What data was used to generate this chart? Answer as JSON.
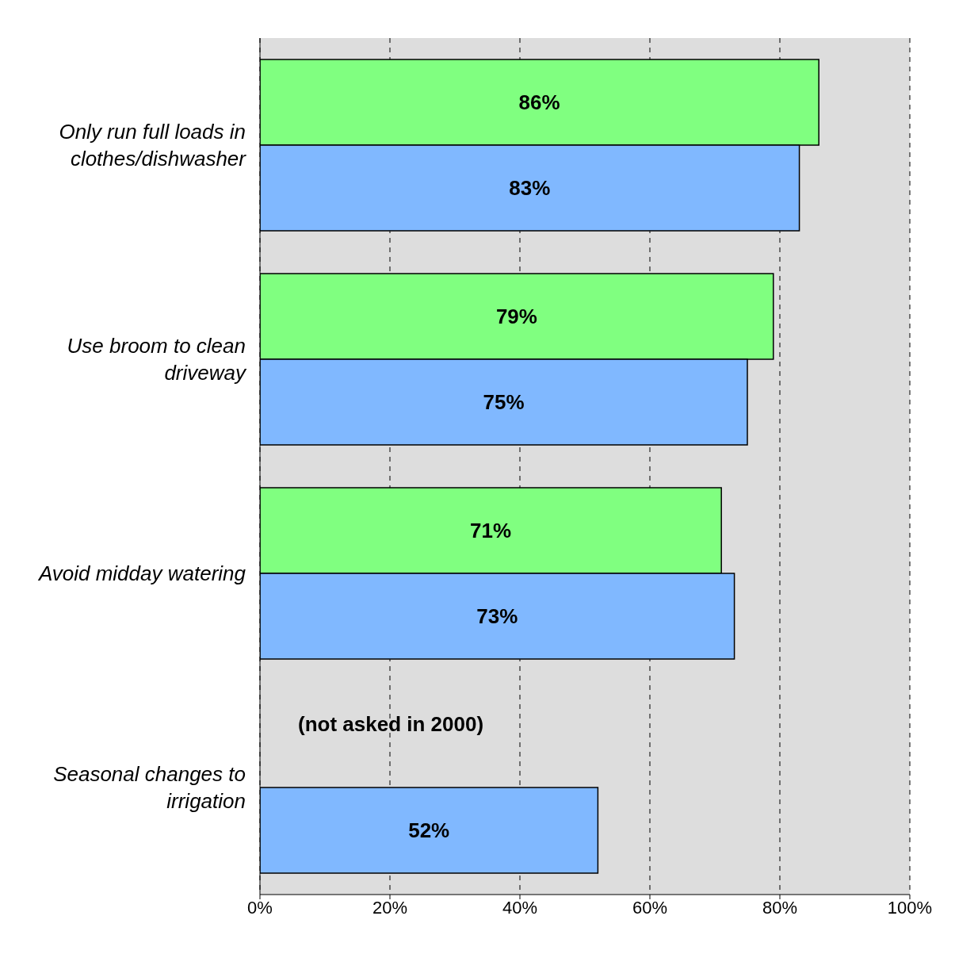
{
  "chart_data": {
    "type": "bar",
    "orientation": "horizontal",
    "categories": [
      "Only run full loads in clothes/dishwasher",
      "Use broom to clean driveway",
      "Avoid midday watering",
      "Seasonal changes to irrigation"
    ],
    "series": [
      {
        "color": "#80ff80",
        "values": [
          86,
          79,
          71,
          null
        ],
        "value_labels": [
          "86%",
          "79%",
          "71%",
          null
        ]
      },
      {
        "color": "#80b8ff",
        "values": [
          83,
          75,
          73,
          52
        ],
        "value_labels": [
          "83%",
          "75%",
          "73%",
          "52%"
        ]
      }
    ],
    "xlim": [
      0,
      100
    ],
    "xticks": [
      {
        "value": 0,
        "label": "0%"
      },
      {
        "value": 20,
        "label": "20%"
      },
      {
        "value": 40,
        "label": "40%"
      },
      {
        "value": 60,
        "label": "60%"
      },
      {
        "value": 80,
        "label": "80%"
      },
      {
        "value": 100,
        "label": "100%"
      }
    ],
    "grid": "x",
    "annotations": [
      {
        "text": "(not asked in 2000)",
        "y": "Seasonal changes to irrigation"
      }
    ]
  }
}
